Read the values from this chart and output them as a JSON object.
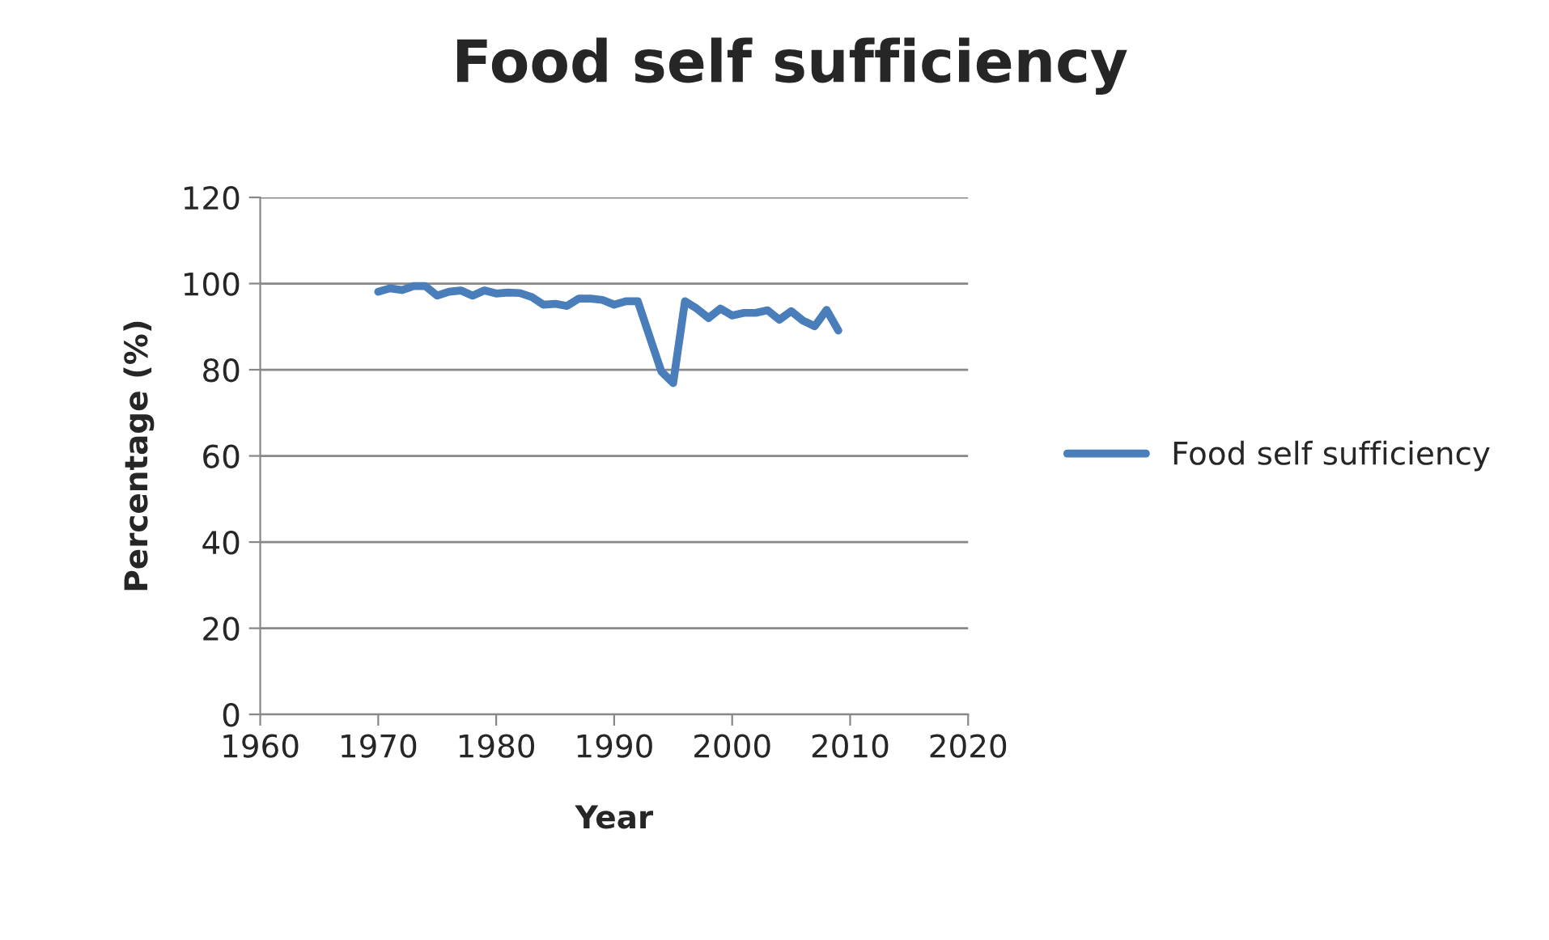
{
  "chart_data": {
    "type": "line",
    "title": "Food self sufficiency",
    "xlabel": "Year",
    "ylabel": "Percentage (%)",
    "x": [
      1970,
      1971,
      1972,
      1973,
      1974,
      1975,
      1976,
      1977,
      1978,
      1979,
      1980,
      1981,
      1982,
      1983,
      1984,
      1985,
      1986,
      1987,
      1988,
      1989,
      1990,
      1991,
      1992,
      1993,
      1994,
      1995,
      1996,
      1997,
      1998,
      1999,
      2000,
      2001,
      2002,
      2003,
      2004,
      2005,
      2006,
      2007,
      2008,
      2009
    ],
    "series": [
      {
        "name": "Food self sufficiency",
        "color": "#4a7ebb",
        "values": [
          98.1,
          98.9,
          98.5,
          99.4,
          99.4,
          97.2,
          98.1,
          98.4,
          97.2,
          98.4,
          97.7,
          97.9,
          97.8,
          96.9,
          95.1,
          95.3,
          94.8,
          96.5,
          96.5,
          96.2,
          95.1,
          95.9,
          95.9,
          87.7,
          79.6,
          76.9,
          95.9,
          94.2,
          92.0,
          94.2,
          92.6,
          93.2,
          93.2,
          93.8,
          91.6,
          93.6,
          91.4,
          90.1,
          93.9,
          89.1
        ]
      }
    ],
    "xlim": [
      1960,
      2020
    ],
    "xticks": [
      1960,
      1970,
      1980,
      1990,
      2000,
      2010,
      2020
    ],
    "ylim": [
      0,
      120
    ],
    "yticks": [
      0,
      20,
      40,
      60,
      80,
      100,
      120
    ],
    "grid": "y",
    "legend": "right",
    "marker": "none",
    "line_style": "solid"
  }
}
